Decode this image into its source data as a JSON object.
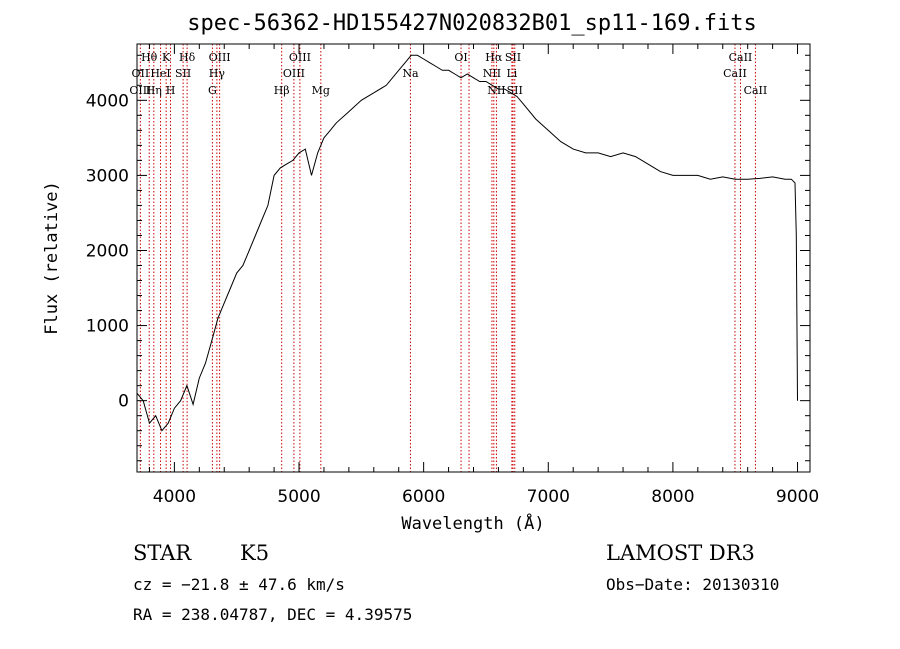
{
  "chart_data": {
    "type": "line",
    "title": "spec-56362-HD155427N020832B01_sp11-169.fits",
    "xlabel": "Wavelength (Å)",
    "ylabel": "Flux (relative)",
    "xlim": [
      3700,
      9100
    ],
    "ylim": [
      -950,
      4750
    ],
    "xticks": [
      4000,
      5000,
      6000,
      7000,
      8000,
      9000
    ],
    "yticks": [
      0,
      1000,
      2000,
      3000,
      4000
    ],
    "grid": false,
    "series": [
      {
        "x": [
          3700,
          3750,
          3800,
          3850,
          3900,
          3950,
          4000,
          4050,
          4100,
          4150,
          4200,
          4250,
          4300,
          4350,
          4400,
          4450,
          4500,
          4550,
          4600,
          4650,
          4700,
          4750,
          4800,
          4850,
          4900,
          4950,
          5000,
          5050,
          5100,
          5150,
          5200,
          5250,
          5300,
          5400,
          5500,
          5600,
          5700,
          5800,
          5850,
          5900,
          5950,
          6000,
          6050,
          6100,
          6150,
          6200,
          6250,
          6300,
          6350,
          6400,
          6450,
          6500,
          6550,
          6600,
          6650,
          6700,
          6750,
          6800,
          6900,
          7000,
          7100,
          7200,
          7300,
          7400,
          7500,
          7600,
          7700,
          7800,
          7900,
          8000,
          8100,
          8200,
          8300,
          8400,
          8500,
          8600,
          8700,
          8800,
          8900,
          8950,
          8980,
          8990,
          9000
        ],
        "y": [
          100,
          0,
          -300,
          -200,
          -400,
          -300,
          -100,
          0,
          200,
          -50,
          300,
          500,
          800,
          1100,
          1300,
          1500,
          1700,
          1800,
          2000,
          2200,
          2400,
          2600,
          3000,
          3100,
          3150,
          3200,
          3300,
          3350,
          3000,
          3300,
          3500,
          3600,
          3700,
          3850,
          4000,
          4100,
          4200,
          4400,
          4500,
          4600,
          4600,
          4550,
          4500,
          4450,
          4400,
          4400,
          4350,
          4300,
          4350,
          4300,
          4250,
          4250,
          4200,
          4150,
          4150,
          4100,
          4050,
          3950,
          3750,
          3600,
          3450,
          3350,
          3300,
          3300,
          3250,
          3300,
          3250,
          3150,
          3050,
          3000,
          3000,
          3000,
          2950,
          2980,
          2950,
          2950,
          2960,
          2980,
          2950,
          2950,
          2900,
          2200,
          0
        ]
      }
    ],
    "line_ids": [
      {
        "label": "Hθ",
        "x": 3798,
        "row": 0
      },
      {
        "label": "OII",
        "x": 3727,
        "row": 1
      },
      {
        "label": "OIII",
        "x": 3727,
        "row": 2
      },
      {
        "label": "K",
        "x": 3934,
        "row": 0
      },
      {
        "label": "HeI",
        "x": 3889,
        "row": 1
      },
      {
        "label": "Hη",
        "x": 3835,
        "row": 2
      },
      {
        "label": "Hδ",
        "x": 4102,
        "row": 0
      },
      {
        "label": "SII",
        "x": 4070,
        "row": 1
      },
      {
        "label": "H",
        "x": 3969,
        "row": 2
      },
      {
        "label": "OIII",
        "x": 4363,
        "row": 0
      },
      {
        "label": "Hγ",
        "x": 4341,
        "row": 1
      },
      {
        "label": "G",
        "x": 4305,
        "row": 2
      },
      {
        "label": "OIII",
        "x": 5007,
        "row": 0
      },
      {
        "label": "OIII",
        "x": 4959,
        "row": 1
      },
      {
        "label": "Hβ",
        "x": 4861,
        "row": 2
      },
      {
        "label": "Mg",
        "x": 5175,
        "row": 2
      },
      {
        "label": "Na",
        "x": 5894,
        "row": 1
      },
      {
        "label": "OI",
        "x": 6300,
        "row": 0
      },
      {
        "label": "NII",
        "x": 6548,
        "row": 1
      },
      {
        "label": "Hα",
        "x": 6563,
        "row": 0
      },
      {
        "label": "SII",
        "x": 6717,
        "row": 0
      },
      {
        "label": "Li",
        "x": 6708,
        "row": 1
      },
      {
        "label": "NII",
        "x": 6584,
        "row": 2
      },
      {
        "label": "SII",
        "x": 6731,
        "row": 2
      },
      {
        "label": "CaII",
        "x": 8542,
        "row": 0
      },
      {
        "label": "CaII",
        "x": 8498,
        "row": 1
      },
      {
        "label": "CaII",
        "x": 8662,
        "row": 2
      }
    ],
    "marker_lines": [
      3727,
      3798,
      3835,
      3889,
      3934,
      3969,
      4070,
      4102,
      4305,
      4341,
      4363,
      4861,
      4959,
      5007,
      5175,
      5894,
      6300,
      6364,
      6548,
      6563,
      6584,
      6708,
      6717,
      6731,
      8498,
      8542,
      8662
    ],
    "line_color": "#000000",
    "marker_color": "#cc0000"
  },
  "info": {
    "object_class": "STAR",
    "subclass": "K5",
    "survey": "LAMOST DR3",
    "cz": "cz = −21.8 ± 47.6 km/s",
    "obs_date": "Obs−Date: 20130310",
    "coords": "RA = 238.04787, DEC =   4.39575"
  }
}
